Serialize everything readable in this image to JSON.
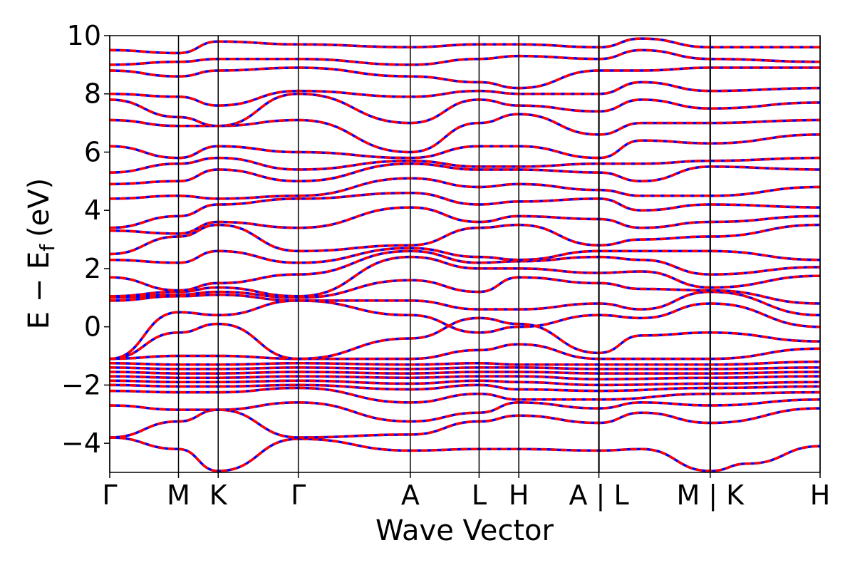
{
  "chart_data": {
    "type": "line",
    "title": "",
    "xlabel": "Wave Vector",
    "ylabel": "E − E",
    "ylabel_sub": "f",
    "ylabel_unit": "(eV)",
    "ylim": [
      -5,
      10
    ],
    "yticks": [
      -4,
      -2,
      0,
      2,
      4,
      6,
      8,
      10
    ],
    "ytick_labels": [
      "−4",
      "−2",
      "0",
      "2",
      "4",
      "6",
      "8",
      "10"
    ],
    "kpath_positions": [
      0,
      0.97,
      1.53,
      2.66,
      4.24,
      5.21,
      5.77,
      6.9,
      8.47,
      10.02
    ],
    "kpath_labels": [
      "Γ",
      "M",
      "K",
      "Γ",
      "A",
      "L",
      "H",
      "A | L",
      "M | K",
      "H"
    ],
    "break_positions": [
      6.9,
      8.47
    ],
    "series_styles": [
      {
        "color": "#0000ff",
        "style": "solid",
        "width": 3.5
      },
      {
        "color": "#ff0000",
        "style": "dashed",
        "width": 3.5
      }
    ],
    "bands": [
      [
        [
          0,
          -3.8
        ],
        [
          0.97,
          -4.2
        ],
        [
          1.53,
          -4.95
        ],
        [
          2.66,
          -3.85
        ],
        [
          4.24,
          -4.25
        ],
        [
          5.21,
          -4.2
        ],
        [
          5.77,
          -4.2
        ],
        [
          6.9,
          -4.25
        ],
        [
          7.5,
          -4.2
        ],
        [
          8.47,
          -4.95
        ],
        [
          9.0,
          -4.7
        ],
        [
          10.02,
          -4.1
        ]
      ],
      [
        [
          0,
          -3.8
        ],
        [
          0.97,
          -3.25
        ],
        [
          1.53,
          -2.85
        ],
        [
          2.66,
          -3.8
        ],
        [
          4.24,
          -3.7
        ],
        [
          5.21,
          -3.25
        ],
        [
          5.77,
          -3.05
        ],
        [
          6.9,
          -3.3
        ],
        [
          7.5,
          -2.95
        ],
        [
          8.47,
          -3.3
        ],
        [
          10.02,
          -2.8
        ]
      ],
      [
        [
          0,
          -2.7
        ],
        [
          0.97,
          -2.85
        ],
        [
          1.53,
          -2.85
        ],
        [
          2.66,
          -2.6
        ],
        [
          4.24,
          -3.25
        ],
        [
          5.21,
          -2.95
        ],
        [
          5.77,
          -2.6
        ],
        [
          6.9,
          -2.8
        ],
        [
          7.5,
          -2.6
        ],
        [
          8.47,
          -2.7
        ],
        [
          10.02,
          -2.5
        ]
      ],
      [
        [
          0,
          -2.2
        ],
        [
          0.97,
          -2.25
        ],
        [
          1.53,
          -2.25
        ],
        [
          2.66,
          -2.1
        ],
        [
          4.24,
          -2.6
        ],
        [
          5.21,
          -2.3
        ],
        [
          5.77,
          -2.5
        ],
        [
          6.9,
          -2.5
        ],
        [
          8.47,
          -2.3
        ],
        [
          10.02,
          -2.25
        ]
      ],
      [
        [
          0,
          -2.0
        ],
        [
          0.97,
          -2.05
        ],
        [
          1.53,
          -2.05
        ],
        [
          2.66,
          -2.0
        ],
        [
          4.24,
          -2.15
        ],
        [
          5.21,
          -2.0
        ],
        [
          5.77,
          -2.15
        ],
        [
          6.9,
          -2.2
        ],
        [
          8.47,
          -2.1
        ],
        [
          10.02,
          -2.05
        ]
      ],
      [
        [
          0,
          -1.85
        ],
        [
          0.97,
          -1.9
        ],
        [
          1.53,
          -1.9
        ],
        [
          2.66,
          -1.85
        ],
        [
          4.24,
          -1.95
        ],
        [
          5.21,
          -1.85
        ],
        [
          5.77,
          -1.9
        ],
        [
          6.9,
          -2.0
        ],
        [
          8.47,
          -1.95
        ],
        [
          10.02,
          -1.9
        ]
      ],
      [
        [
          0,
          -1.7
        ],
        [
          0.97,
          -1.75
        ],
        [
          1.53,
          -1.75
        ],
        [
          2.66,
          -1.7
        ],
        [
          4.24,
          -1.75
        ],
        [
          5.21,
          -1.7
        ],
        [
          5.77,
          -1.7
        ],
        [
          6.9,
          -1.8
        ],
        [
          8.47,
          -1.75
        ],
        [
          10.02,
          -1.7
        ]
      ],
      [
        [
          0,
          -1.55
        ],
        [
          0.97,
          -1.6
        ],
        [
          1.53,
          -1.6
        ],
        [
          2.66,
          -1.55
        ],
        [
          4.24,
          -1.6
        ],
        [
          5.21,
          -1.55
        ],
        [
          5.77,
          -1.55
        ],
        [
          6.9,
          -1.6
        ],
        [
          8.47,
          -1.6
        ],
        [
          10.02,
          -1.55
        ]
      ],
      [
        [
          0,
          -1.4
        ],
        [
          0.97,
          -1.45
        ],
        [
          1.53,
          -1.45
        ],
        [
          2.66,
          -1.4
        ],
        [
          4.24,
          -1.45
        ],
        [
          5.21,
          -1.4
        ],
        [
          5.77,
          -1.4
        ],
        [
          6.9,
          -1.45
        ],
        [
          8.47,
          -1.45
        ],
        [
          10.02,
          -1.4
        ]
      ],
      [
        [
          0,
          -1.25
        ],
        [
          0.97,
          -1.3
        ],
        [
          1.53,
          -1.3
        ],
        [
          2.66,
          -1.25
        ],
        [
          4.24,
          -1.3
        ],
        [
          5.21,
          -1.25
        ],
        [
          5.77,
          -1.3
        ],
        [
          6.9,
          -1.3
        ],
        [
          8.47,
          -1.3
        ],
        [
          10.02,
          -1.2
        ]
      ],
      [
        [
          0,
          -1.1
        ],
        [
          0.97,
          -1.0
        ],
        [
          1.53,
          -1.0
        ],
        [
          2.66,
          -1.1
        ],
        [
          4.24,
          -1.1
        ],
        [
          5.21,
          -0.8
        ],
        [
          5.77,
          -0.6
        ],
        [
          6.9,
          -1.1
        ],
        [
          8.47,
          -1.1
        ],
        [
          10.02,
          -0.75
        ]
      ],
      [
        [
          0,
          -1.1
        ],
        [
          0.97,
          -0.2
        ],
        [
          1.53,
          0.1
        ],
        [
          2.66,
          -1.1
        ],
        [
          4.24,
          -0.4
        ],
        [
          5.21,
          0.3
        ],
        [
          5.77,
          0.1
        ],
        [
          6.9,
          -0.9
        ],
        [
          7.5,
          -0.3
        ],
        [
          8.47,
          -0.2
        ],
        [
          10.02,
          -0.5
        ]
      ],
      [
        [
          0,
          -1.1
        ],
        [
          0.97,
          0.5
        ],
        [
          1.53,
          0.4
        ],
        [
          2.66,
          0.9
        ],
        [
          4.24,
          0.4
        ],
        [
          5.21,
          -0.2
        ],
        [
          5.77,
          0.0
        ],
        [
          6.9,
          0.4
        ],
        [
          7.5,
          0.3
        ],
        [
          8.47,
          0.8
        ],
        [
          10.02,
          0.0
        ]
      ],
      [
        [
          0,
          0.9
        ],
        [
          0.97,
          1.05
        ],
        [
          1.53,
          1.1
        ],
        [
          2.66,
          0.9
        ],
        [
          4.24,
          0.9
        ],
        [
          5.21,
          0.6
        ],
        [
          5.77,
          0.6
        ],
        [
          6.9,
          0.8
        ],
        [
          7.5,
          0.6
        ],
        [
          8.47,
          1.2
        ],
        [
          10.02,
          0.4
        ]
      ],
      [
        [
          0,
          1.0
        ],
        [
          0.97,
          1.1
        ],
        [
          1.53,
          1.2
        ],
        [
          2.66,
          1.0
        ],
        [
          4.24,
          1.6
        ],
        [
          5.21,
          1.2
        ],
        [
          5.77,
          1.7
        ],
        [
          6.9,
          1.5
        ],
        [
          7.5,
          1.3
        ],
        [
          8.47,
          1.25
        ],
        [
          10.02,
          0.8
        ]
      ],
      [
        [
          0,
          1.05
        ],
        [
          0.97,
          1.2
        ],
        [
          1.53,
          1.35
        ],
        [
          2.66,
          1.05
        ],
        [
          4.24,
          2.4
        ],
        [
          5.21,
          2.0
        ],
        [
          5.77,
          2.0
        ],
        [
          6.9,
          1.85
        ],
        [
          7.5,
          1.9
        ],
        [
          8.47,
          1.35
        ],
        [
          10.02,
          1.75
        ]
      ],
      [
        [
          0,
          1.7
        ],
        [
          0.97,
          1.25
        ],
        [
          1.53,
          1.5
        ],
        [
          2.66,
          1.8
        ],
        [
          4.24,
          2.6
        ],
        [
          5.21,
          2.2
        ],
        [
          5.77,
          2.25
        ],
        [
          6.9,
          2.4
        ],
        [
          7.5,
          2.3
        ],
        [
          8.47,
          1.8
        ],
        [
          10.02,
          2.05
        ]
      ],
      [
        [
          0,
          2.3
        ],
        [
          0.97,
          2.2
        ],
        [
          1.53,
          2.6
        ],
        [
          2.66,
          2.2
        ],
        [
          4.24,
          2.7
        ],
        [
          5.21,
          2.4
        ],
        [
          5.77,
          2.3
        ],
        [
          6.9,
          2.6
        ],
        [
          7.5,
          2.6
        ],
        [
          8.47,
          2.6
        ],
        [
          10.02,
          2.3
        ]
      ],
      [
        [
          0,
          2.5
        ],
        [
          0.97,
          3.1
        ],
        [
          1.53,
          3.5
        ],
        [
          2.66,
          2.6
        ],
        [
          4.24,
          2.8
        ],
        [
          5.21,
          3.4
        ],
        [
          5.77,
          3.5
        ],
        [
          6.9,
          2.8
        ],
        [
          7.5,
          3.0
        ],
        [
          8.47,
          3.1
        ],
        [
          10.02,
          3.5
        ]
      ],
      [
        [
          0,
          3.3
        ],
        [
          0.97,
          3.2
        ],
        [
          1.53,
          3.6
        ],
        [
          2.66,
          3.4
        ],
        [
          4.24,
          4.1
        ],
        [
          5.21,
          3.6
        ],
        [
          5.77,
          3.8
        ],
        [
          6.9,
          3.7
        ],
        [
          7.5,
          3.4
        ],
        [
          8.47,
          3.6
        ],
        [
          10.02,
          3.8
        ]
      ],
      [
        [
          0,
          3.4
        ],
        [
          0.97,
          3.8
        ],
        [
          1.53,
          4.2
        ],
        [
          2.66,
          4.4
        ],
        [
          4.24,
          4.6
        ],
        [
          5.21,
          4.2
        ],
        [
          5.77,
          4.3
        ],
        [
          6.9,
          4.4
        ],
        [
          7.5,
          4.0
        ],
        [
          8.47,
          4.2
        ],
        [
          10.02,
          4.1
        ]
      ],
      [
        [
          0,
          4.4
        ],
        [
          0.97,
          4.5
        ],
        [
          1.53,
          4.4
        ],
        [
          2.66,
          4.5
        ],
        [
          4.24,
          5.1
        ],
        [
          5.21,
          4.8
        ],
        [
          5.77,
          4.9
        ],
        [
          6.9,
          4.7
        ],
        [
          7.5,
          4.5
        ],
        [
          8.47,
          4.5
        ],
        [
          10.02,
          4.8
        ]
      ],
      [
        [
          0,
          4.9
        ],
        [
          0.97,
          5.0
        ],
        [
          1.53,
          5.4
        ],
        [
          2.66,
          5.0
        ],
        [
          4.24,
          5.6
        ],
        [
          5.21,
          5.4
        ],
        [
          5.77,
          5.4
        ],
        [
          6.9,
          5.3
        ],
        [
          7.5,
          5.0
        ],
        [
          8.47,
          5.5
        ],
        [
          10.02,
          5.4
        ]
      ],
      [
        [
          0,
          5.3
        ],
        [
          0.97,
          5.6
        ],
        [
          1.53,
          5.8
        ],
        [
          2.66,
          5.4
        ],
        [
          4.24,
          5.7
        ],
        [
          5.21,
          5.5
        ],
        [
          5.77,
          5.5
        ],
        [
          6.9,
          5.6
        ],
        [
          7.5,
          5.6
        ],
        [
          8.47,
          5.7
        ],
        [
          10.02,
          5.8
        ]
      ],
      [
        [
          0,
          6.2
        ],
        [
          0.97,
          5.8
        ],
        [
          1.53,
          6.2
        ],
        [
          2.66,
          6.0
        ],
        [
          4.24,
          5.8
        ],
        [
          5.21,
          6.2
        ],
        [
          5.77,
          6.2
        ],
        [
          6.9,
          5.8
        ],
        [
          7.5,
          6.4
        ],
        [
          8.47,
          6.3
        ],
        [
          10.02,
          6.6
        ]
      ],
      [
        [
          0,
          7.1
        ],
        [
          0.97,
          6.9
        ],
        [
          1.53,
          6.9
        ],
        [
          2.66,
          7.1
        ],
        [
          4.24,
          6.0
        ],
        [
          5.21,
          7.0
        ],
        [
          5.77,
          7.3
        ],
        [
          6.9,
          6.6
        ],
        [
          7.5,
          7.0
        ],
        [
          8.47,
          7.0
        ],
        [
          10.02,
          7.1
        ]
      ],
      [
        [
          0,
          7.8
        ],
        [
          0.97,
          7.2
        ],
        [
          1.53,
          6.9
        ],
        [
          2.66,
          8.0
        ],
        [
          4.24,
          7.0
        ],
        [
          5.21,
          7.8
        ],
        [
          5.77,
          7.6
        ],
        [
          6.9,
          7.4
        ],
        [
          7.5,
          7.8
        ],
        [
          8.47,
          7.5
        ],
        [
          10.02,
          7.7
        ]
      ],
      [
        [
          0,
          8.0
        ],
        [
          0.97,
          7.9
        ],
        [
          1.53,
          7.6
        ],
        [
          2.66,
          8.1
        ],
        [
          4.24,
          7.9
        ],
        [
          5.21,
          8.1
        ],
        [
          5.77,
          8.0
        ],
        [
          6.9,
          8.0
        ],
        [
          7.5,
          8.4
        ],
        [
          8.47,
          8.1
        ],
        [
          10.02,
          8.2
        ]
      ],
      [
        [
          0,
          8.8
        ],
        [
          0.97,
          8.6
        ],
        [
          1.53,
          8.8
        ],
        [
          2.66,
          8.9
        ],
        [
          4.24,
          8.6
        ],
        [
          5.21,
          8.4
        ],
        [
          5.77,
          8.2
        ],
        [
          6.9,
          8.8
        ],
        [
          7.5,
          8.8
        ],
        [
          8.47,
          8.9
        ],
        [
          10.02,
          8.9
        ]
      ],
      [
        [
          0,
          9.0
        ],
        [
          0.97,
          9.1
        ],
        [
          1.53,
          9.2
        ],
        [
          2.66,
          9.2
        ],
        [
          4.24,
          9.0
        ],
        [
          5.21,
          9.2
        ],
        [
          5.77,
          9.3
        ],
        [
          6.9,
          9.2
        ],
        [
          7.5,
          9.5
        ],
        [
          8.47,
          9.2
        ],
        [
          10.02,
          9.1
        ]
      ],
      [
        [
          0,
          9.5
        ],
        [
          0.97,
          9.4
        ],
        [
          1.53,
          9.8
        ],
        [
          2.66,
          9.7
        ],
        [
          4.24,
          9.6
        ],
        [
          5.21,
          9.7
        ],
        [
          5.77,
          9.7
        ],
        [
          6.9,
          9.6
        ],
        [
          7.5,
          9.9
        ],
        [
          8.47,
          9.6
        ],
        [
          10.02,
          9.6
        ]
      ]
    ]
  }
}
